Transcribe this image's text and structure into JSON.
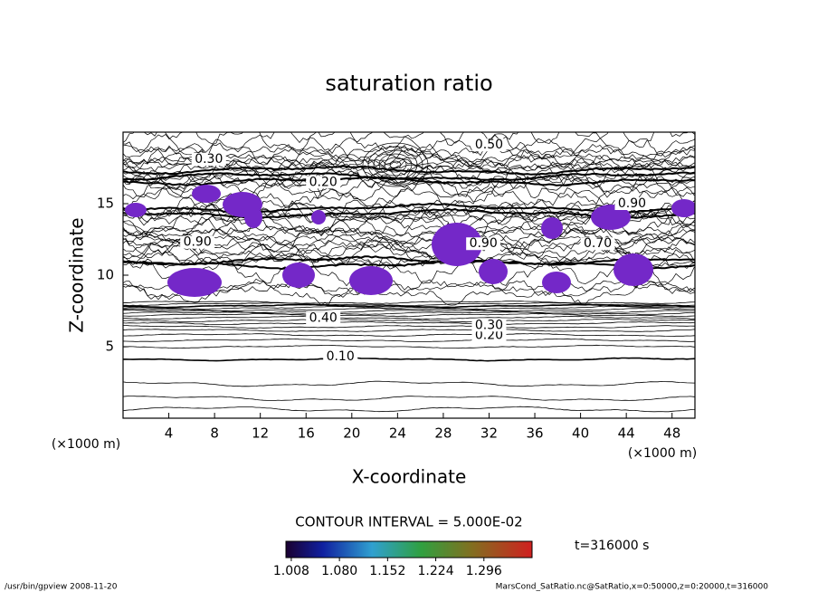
{
  "chart_data": {
    "type": "contour",
    "title": "saturation ratio",
    "x_label": "X-coordinate",
    "y_label": "Z-coordinate",
    "x_unit": "(×1000 m)",
    "y_unit": "(×1000 m)",
    "xlim": [
      0,
      50
    ],
    "ylim": [
      0,
      20
    ],
    "xticks": [
      4,
      8,
      12,
      16,
      20,
      24,
      28,
      32,
      36,
      40,
      44,
      48
    ],
    "yticks": [
      5,
      10,
      15
    ],
    "contour_labels": [
      {
        "label": "0.10",
        "x": 19,
        "y": 4.3
      },
      {
        "label": "0.20",
        "x": 32,
        "y": 5.8
      },
      {
        "label": "0.30",
        "x": 32,
        "y": 6.5
      },
      {
        "label": "0.40",
        "x": 17.5,
        "y": 7.0
      },
      {
        "label": "0.50",
        "x": 32,
        "y": 19.1
      },
      {
        "label": "0.30",
        "x": 7.5,
        "y": 18.1
      },
      {
        "label": "0.20",
        "x": 17.5,
        "y": 16.5
      },
      {
        "label": "0.90",
        "x": 44.5,
        "y": 15.0
      },
      {
        "label": "0.90",
        "x": 31.5,
        "y": 12.2
      },
      {
        "label": "0.70",
        "x": 41.5,
        "y": 12.2
      },
      {
        "label": "0.90",
        "x": 6.5,
        "y": 12.3
      }
    ],
    "contour_interval": "CONTOUR INTERVAL = 5.000E-02",
    "time_label": "t=316000 s",
    "colorbar": {
      "lim": [
        1.0,
        1.368
      ],
      "ticks": [
        {
          "value": 1.008,
          "label": "1.008"
        },
        {
          "value": 1.08,
          "label": "1.080"
        },
        {
          "value": 1.152,
          "label": "1.152"
        },
        {
          "value": 1.224,
          "label": "1.224"
        },
        {
          "value": 1.296,
          "label": "1.296"
        }
      ]
    },
    "footer_left": "/usr/bin/gpview  2008-11-20",
    "footer_right": "MarsCond_SatRatio.nc@SatRatio,x=0:50000,z=0:20000,t=316000"
  }
}
